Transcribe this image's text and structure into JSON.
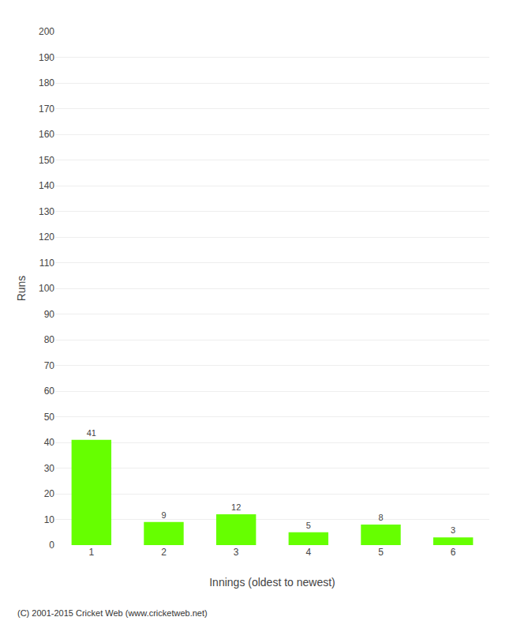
{
  "chart_data": {
    "type": "bar",
    "categories": [
      "1",
      "2",
      "3",
      "4",
      "5",
      "6"
    ],
    "values": [
      41,
      9,
      12,
      5,
      8,
      3
    ],
    "color": "#66ff00",
    "xlabel": "Innings (oldest to newest)",
    "ylabel": "Runs",
    "ylim": [
      0,
      200
    ],
    "yticks": [
      0,
      10,
      20,
      30,
      40,
      50,
      60,
      70,
      80,
      90,
      100,
      110,
      120,
      130,
      140,
      150,
      160,
      170,
      180,
      190,
      200
    ],
    "grid": true,
    "data_labels": true,
    "annotations": [
      "(C) 2001-2015 Cricket Web (www.cricketweb.net)"
    ]
  }
}
